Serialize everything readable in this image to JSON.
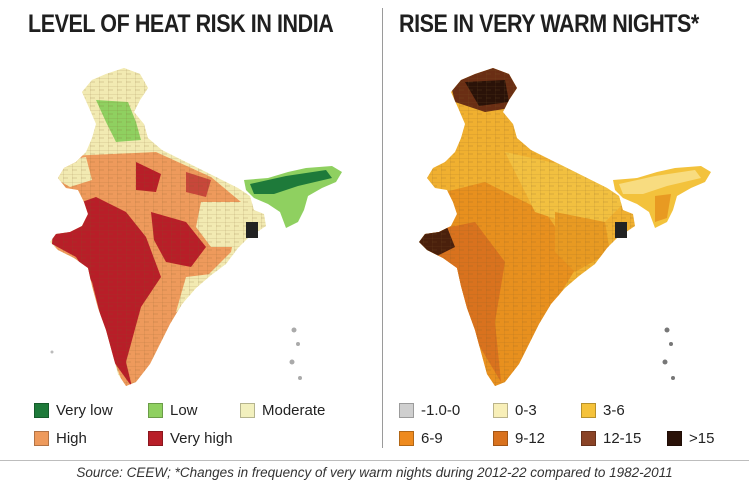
{
  "left_panel": {
    "title": "LEVEL OF HEAT RISK IN INDIA",
    "legend": [
      {
        "label": "Very low",
        "color": "#1e7a3a"
      },
      {
        "label": "Low",
        "color": "#8fd060"
      },
      {
        "label": "Moderate",
        "color": "#f2f0be"
      },
      {
        "label": "High",
        "color": "#ee9a5c"
      },
      {
        "label": "Very high",
        "color": "#b81e28"
      }
    ]
  },
  "right_panel": {
    "title": "RISE IN VERY WARM NIGHTS*",
    "legend": [
      {
        "label": "-1.0-0",
        "color": "#cfcfcf"
      },
      {
        "label": "0-3",
        "color": "#f8efb8"
      },
      {
        "label": "3-6",
        "color": "#f5c23a"
      },
      {
        "label": "6-9",
        "color": "#ee8a1e"
      },
      {
        "label": "9-12",
        "color": "#d9721e"
      },
      {
        "label": "12-15",
        "color": "#8a4326"
      },
      {
        "label": ">15",
        "color": "#2a1208"
      }
    ]
  },
  "footer": {
    "text": "Source: CEEW; *Changes in frequency of very warm nights during 2012-22 compared to 1982-2011"
  }
}
